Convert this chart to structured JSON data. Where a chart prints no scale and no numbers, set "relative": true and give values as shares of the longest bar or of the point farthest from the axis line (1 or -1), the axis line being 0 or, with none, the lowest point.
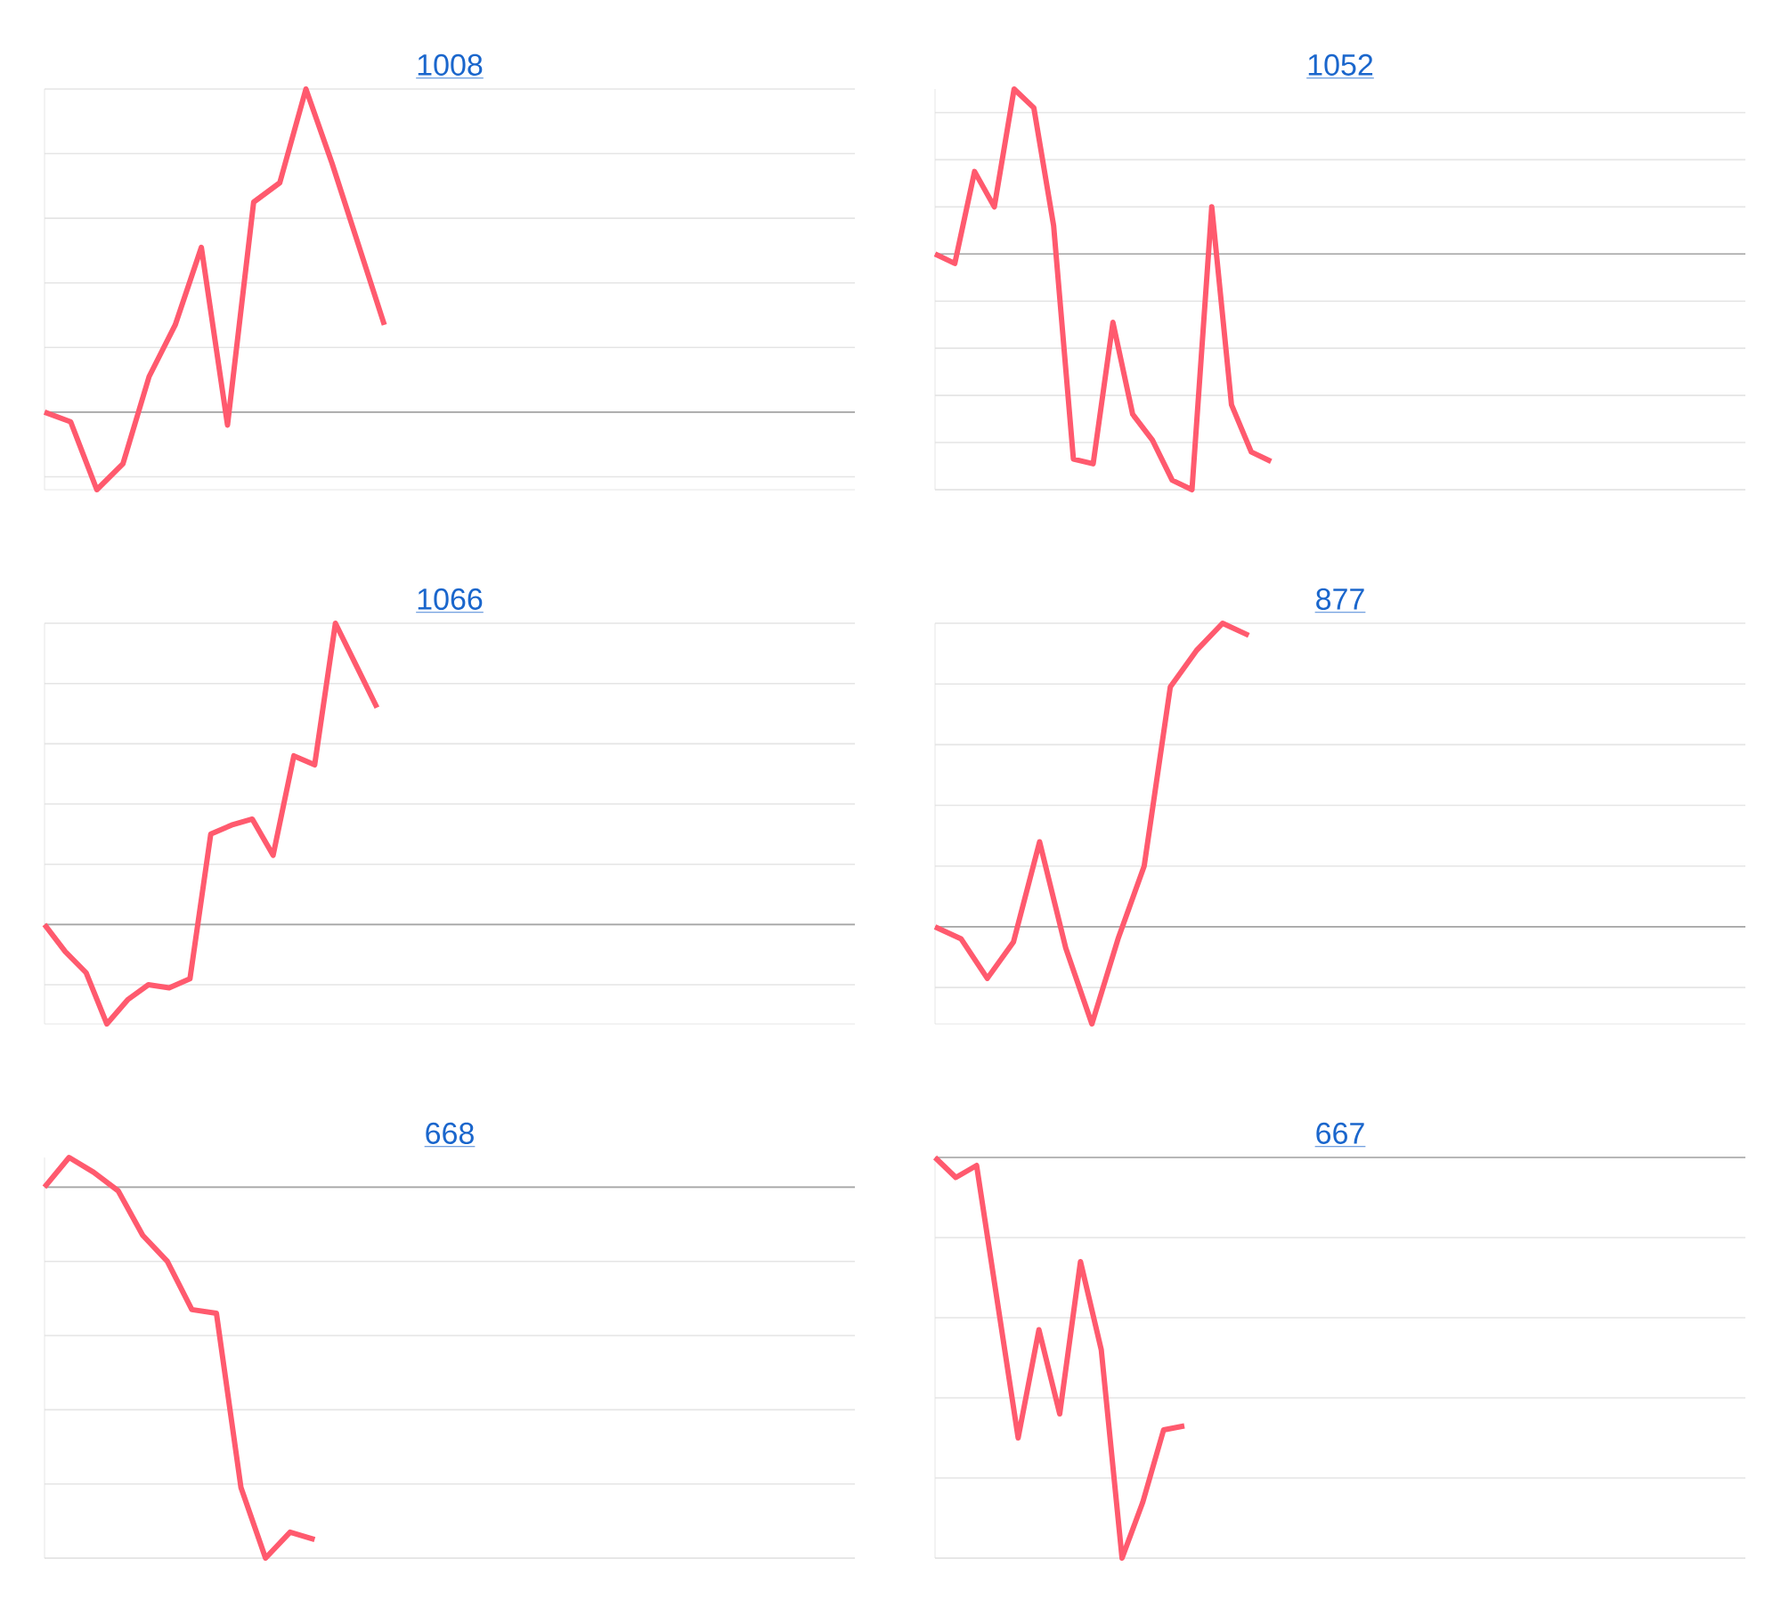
{
  "chart_data": [
    {
      "type": "line",
      "title": "1008",
      "relative": true,
      "grid": "y",
      "marker": "none",
      "line_style": "solid",
      "color": "#ff5a6e",
      "categories": [
        null,
        null,
        null,
        null,
        null,
        null,
        null,
        null,
        null,
        null,
        null,
        null,
        null,
        null,
        null,
        null,
        null,
        null,
        null,
        null,
        null,
        null,
        null,
        null,
        null,
        null,
        null,
        null,
        null,
        null,
        null,
        null
      ],
      "values": [
        0,
        -0.03,
        -0.24,
        -0.16,
        0.11,
        0.27,
        0.51,
        -0.04,
        0.65,
        0.71,
        1,
        0.77,
        0.52,
        0.27,
        null,
        null,
        null,
        null,
        null,
        null,
        null,
        null,
        null,
        null,
        null,
        null,
        null,
        null,
        null,
        null,
        null,
        null
      ]
    },
    {
      "type": "line",
      "title": "1052",
      "relative": true,
      "grid": "y",
      "marker": "none",
      "line_style": "solid",
      "color": "#ff5a6e",
      "categories": [
        null,
        null,
        null,
        null,
        null,
        null,
        null,
        null,
        null,
        null,
        null,
        null,
        null,
        null,
        null,
        null,
        null,
        null,
        null,
        null,
        null,
        null,
        null,
        null,
        null,
        null,
        null,
        null,
        null,
        null,
        null,
        null,
        null,
        null,
        null,
        null,
        null,
        null,
        null,
        null,
        null,
        null
      ],
      "values": [
        0,
        -0.04,
        0.35,
        0.2,
        0.7,
        0.62,
        0.12,
        -0.87,
        -0.89,
        -0.29,
        -0.68,
        -0.79,
        -0.96,
        -1,
        0.2,
        -0.64,
        -0.84,
        -0.88,
        null,
        null,
        null,
        null,
        null,
        null,
        null,
        null,
        null,
        null,
        null,
        null,
        null,
        null,
        null,
        null,
        null,
        null,
        null,
        null,
        null,
        null,
        null,
        null
      ]
    },
    {
      "type": "line",
      "title": "1066",
      "relative": true,
      "grid": "y",
      "marker": "none",
      "line_style": "solid",
      "color": "#ff5a6e",
      "categories": [
        null,
        null,
        null,
        null,
        null,
        null,
        null,
        null,
        null,
        null,
        null,
        null,
        null,
        null,
        null,
        null,
        null,
        null,
        null,
        null,
        null,
        null,
        null,
        null,
        null,
        null,
        null,
        null,
        null,
        null,
        null,
        null,
        null,
        null,
        null,
        null,
        null,
        null,
        null,
        null
      ],
      "values": [
        0,
        -0.09,
        -0.16,
        -0.33,
        -0.25,
        -0.2,
        -0.21,
        -0.18,
        0.3,
        0.33,
        0.35,
        0.23,
        0.56,
        0.53,
        1,
        0.86,
        0.72,
        null,
        null,
        null,
        null,
        null,
        null,
        null,
        null,
        null,
        null,
        null,
        null,
        null,
        null,
        null,
        null,
        null,
        null,
        null,
        null,
        null,
        null,
        null
      ]
    },
    {
      "type": "line",
      "title": "877",
      "relative": true,
      "grid": "y",
      "marker": "none",
      "line_style": "solid",
      "color": "#ff5a6e",
      "categories": [
        null,
        null,
        null,
        null,
        null,
        null,
        null,
        null,
        null,
        null,
        null,
        null,
        null,
        null,
        null,
        null,
        null,
        null,
        null,
        null,
        null,
        null,
        null,
        null,
        null,
        null,
        null,
        null,
        null,
        null,
        null,
        null
      ],
      "values": [
        0,
        -0.04,
        -0.17,
        -0.05,
        0.28,
        -0.07,
        -0.32,
        -0.04,
        0.2,
        0.79,
        0.91,
        1,
        0.96,
        null,
        null,
        null,
        null,
        null,
        null,
        null,
        null,
        null,
        null,
        null,
        null,
        null,
        null,
        null,
        null,
        null,
        null,
        null
      ]
    },
    {
      "type": "line",
      "title": "668",
      "relative": true,
      "grid": "y",
      "marker": "none",
      "line_style": "solid",
      "color": "#ff5a6e",
      "categories": [
        null,
        null,
        null,
        null,
        null,
        null,
        null,
        null,
        null,
        null,
        null,
        null,
        null,
        null,
        null,
        null,
        null,
        null,
        null,
        null,
        null,
        null,
        null,
        null,
        null,
        null,
        null,
        null,
        null,
        null,
        null,
        null,
        null,
        null
      ],
      "values": [
        0,
        0.08,
        0.04,
        -0.01,
        -0.13,
        -0.2,
        -0.33,
        -0.34,
        -0.81,
        -1,
        -0.93,
        -0.95,
        null,
        null,
        null,
        null,
        null,
        null,
        null,
        null,
        null,
        null,
        null,
        null,
        null,
        null,
        null,
        null,
        null,
        null,
        null,
        null,
        null,
        null
      ]
    },
    {
      "type": "line",
      "title": "667",
      "relative": true,
      "grid": "y",
      "marker": "none",
      "line_style": "solid",
      "color": "#ff5a6e",
      "categories": [
        null,
        null,
        null,
        null,
        null,
        null,
        null,
        null,
        null,
        null,
        null,
        null,
        null,
        null,
        null,
        null,
        null,
        null,
        null,
        null,
        null,
        null,
        null,
        null,
        null,
        null,
        null,
        null,
        null,
        null,
        null,
        null,
        null,
        null,
        null,
        null,
        null,
        null,
        null,
        null
      ],
      "values": [
        0,
        -0.05,
        -0.02,
        -0.36,
        -0.7,
        -0.43,
        -0.64,
        -0.26,
        -0.48,
        -1,
        -0.86,
        -0.68,
        -0.67,
        null,
        null,
        null,
        null,
        null,
        null,
        null,
        null,
        null,
        null,
        null,
        null,
        null,
        null,
        null,
        null,
        null,
        null,
        null,
        null,
        null,
        null,
        null,
        null,
        null,
        null,
        null
      ]
    }
  ]
}
